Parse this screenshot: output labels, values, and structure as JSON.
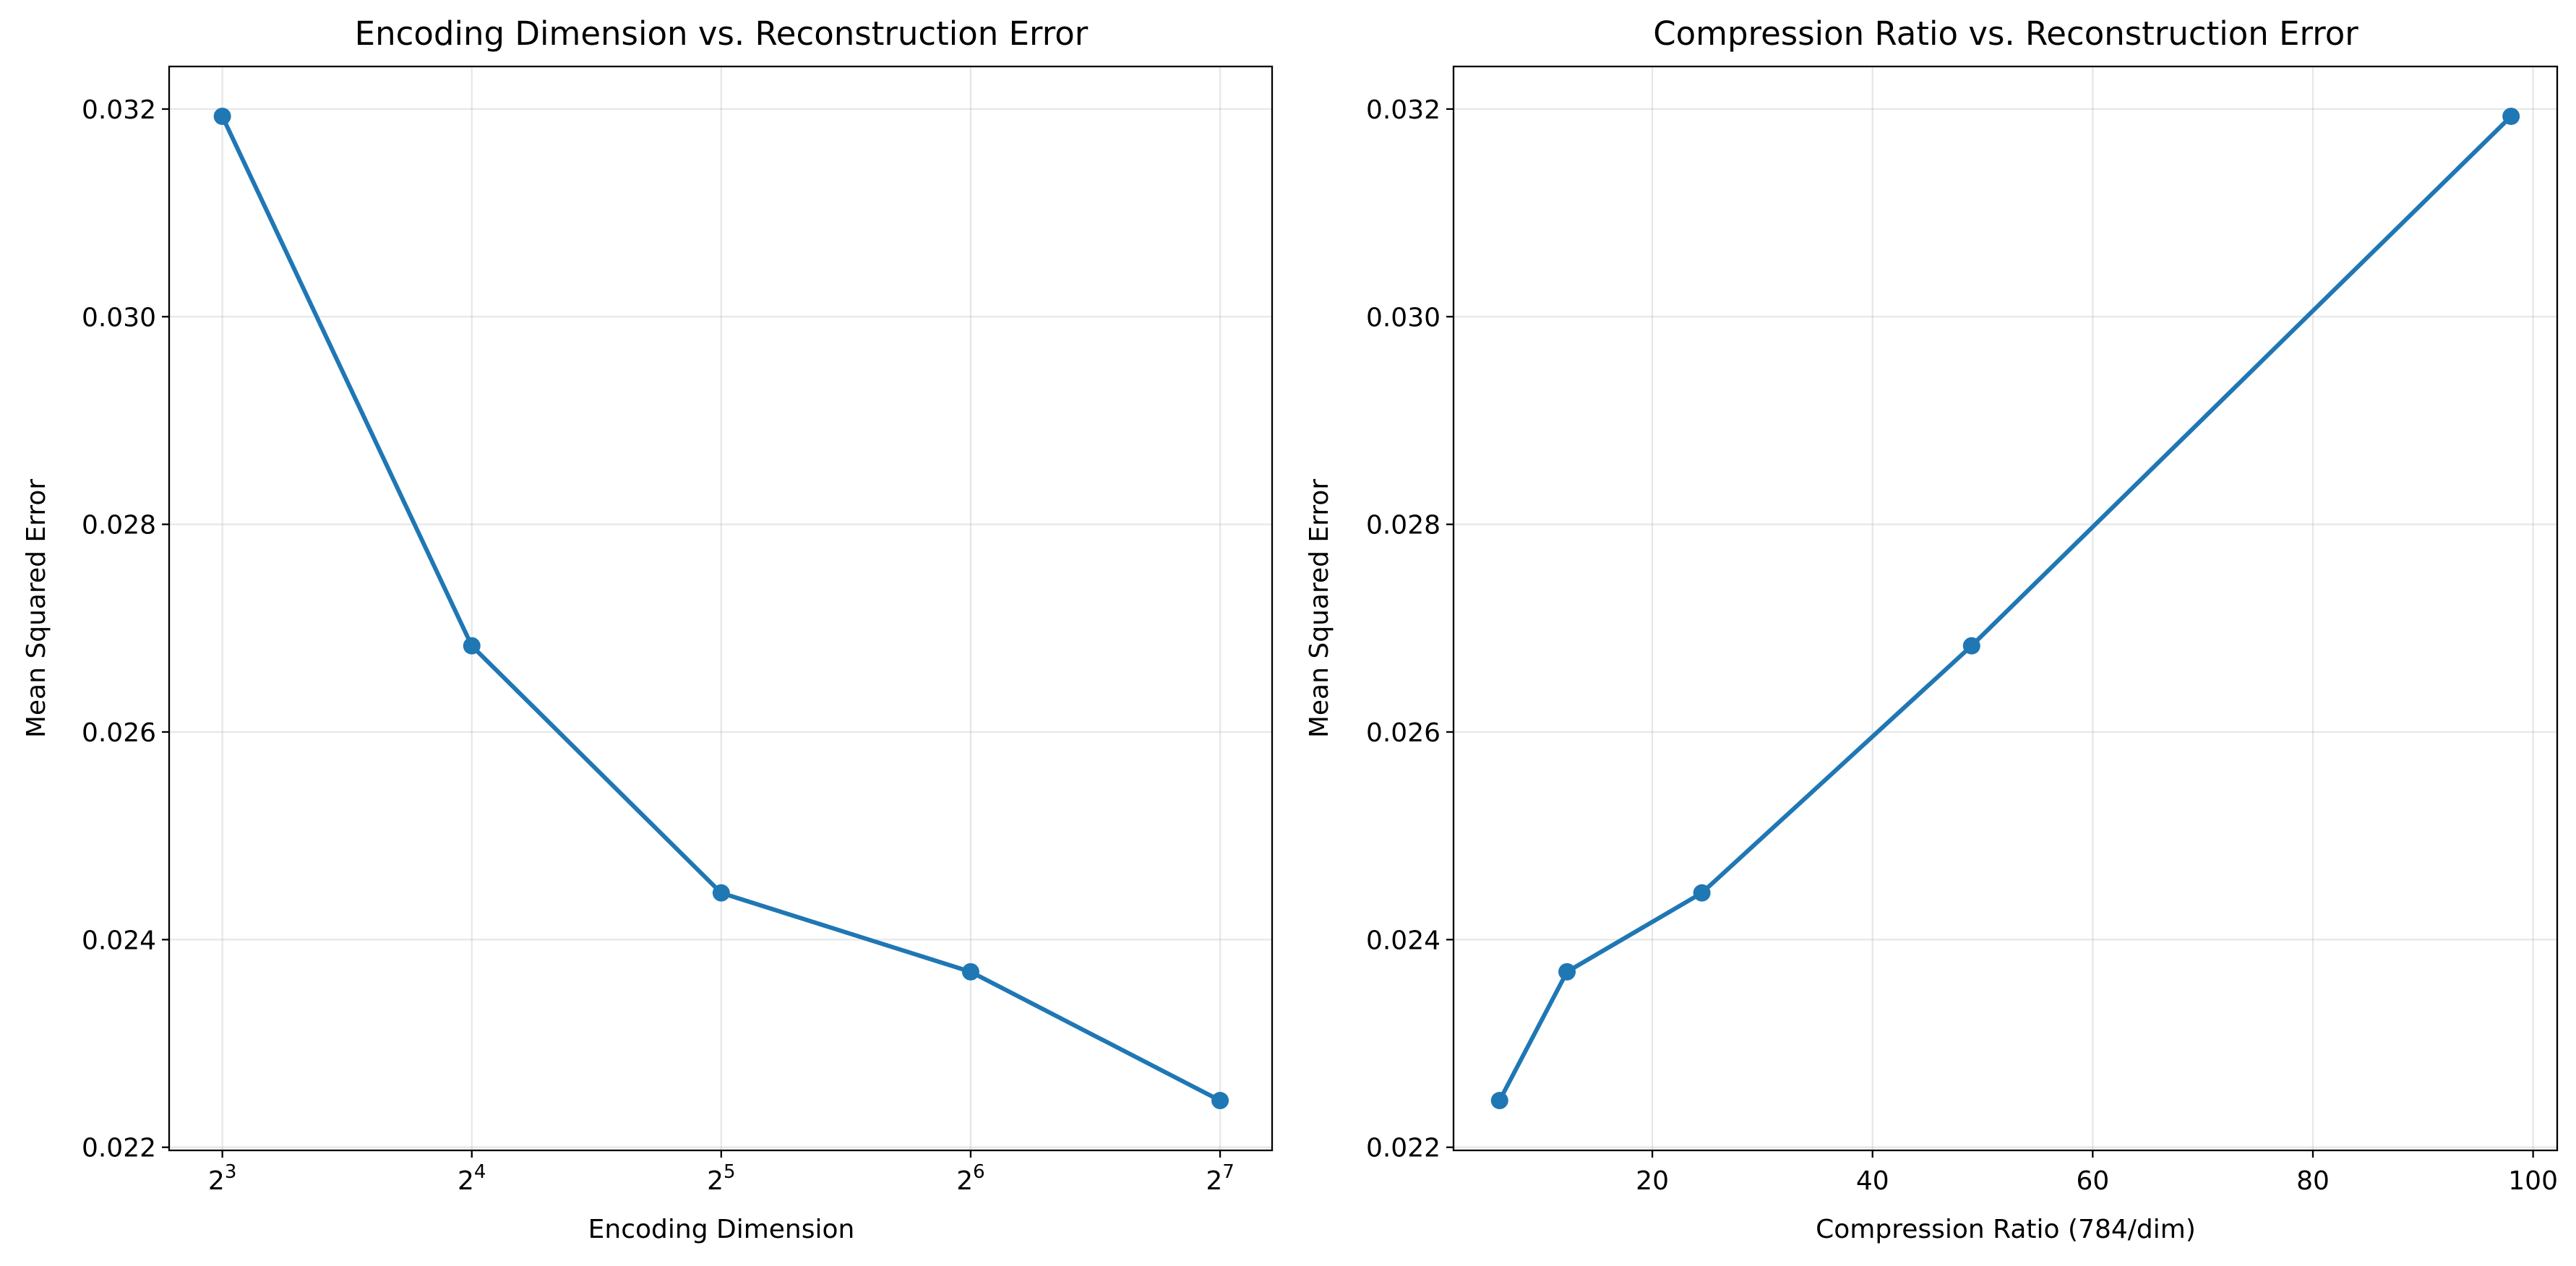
{
  "chart_data": [
    {
      "type": "line",
      "title": "Encoding Dimension vs. Reconstruction Error",
      "xlabel": "Encoding Dimension",
      "ylabel": "Mean Squared Error",
      "x_scale": "log2",
      "xlim": [
        6.9,
        147.9
      ],
      "ylim": [
        0.02197,
        0.03241
      ],
      "xticks": [
        {
          "value": 8,
          "base": "2",
          "exp": "3"
        },
        {
          "value": 16,
          "base": "2",
          "exp": "4"
        },
        {
          "value": 32,
          "base": "2",
          "exp": "5"
        },
        {
          "value": 64,
          "base": "2",
          "exp": "6"
        },
        {
          "value": 128,
          "base": "2",
          "exp": "7"
        }
      ],
      "yticks": [
        "0.022",
        "0.024",
        "0.026",
        "0.028",
        "0.030",
        "0.032"
      ],
      "grid": true,
      "color": "#1f77b4",
      "series": [
        {
          "x": [
            8,
            16,
            32,
            64,
            128
          ],
          "y": [
            0.03193,
            0.02683,
            0.02445,
            0.02369,
            0.02245
          ]
        }
      ]
    },
    {
      "type": "line",
      "title": "Compression Ratio vs. Reconstruction Error",
      "xlabel": "Compression Ratio (784/dim)",
      "ylabel": "Mean Squared Error",
      "x_scale": "linear",
      "xlim": [
        1.94,
        102.19
      ],
      "ylim": [
        0.02197,
        0.03241
      ],
      "xticks": [
        "20",
        "40",
        "60",
        "80",
        "100"
      ],
      "yticks": [
        "0.022",
        "0.024",
        "0.026",
        "0.028",
        "0.030",
        "0.032"
      ],
      "grid": true,
      "color": "#1f77b4",
      "series": [
        {
          "x": [
            6.125,
            12.25,
            24.5,
            49.0,
            98.0
          ],
          "y": [
            0.02245,
            0.02369,
            0.02445,
            0.02683,
            0.03193
          ]
        }
      ]
    }
  ]
}
